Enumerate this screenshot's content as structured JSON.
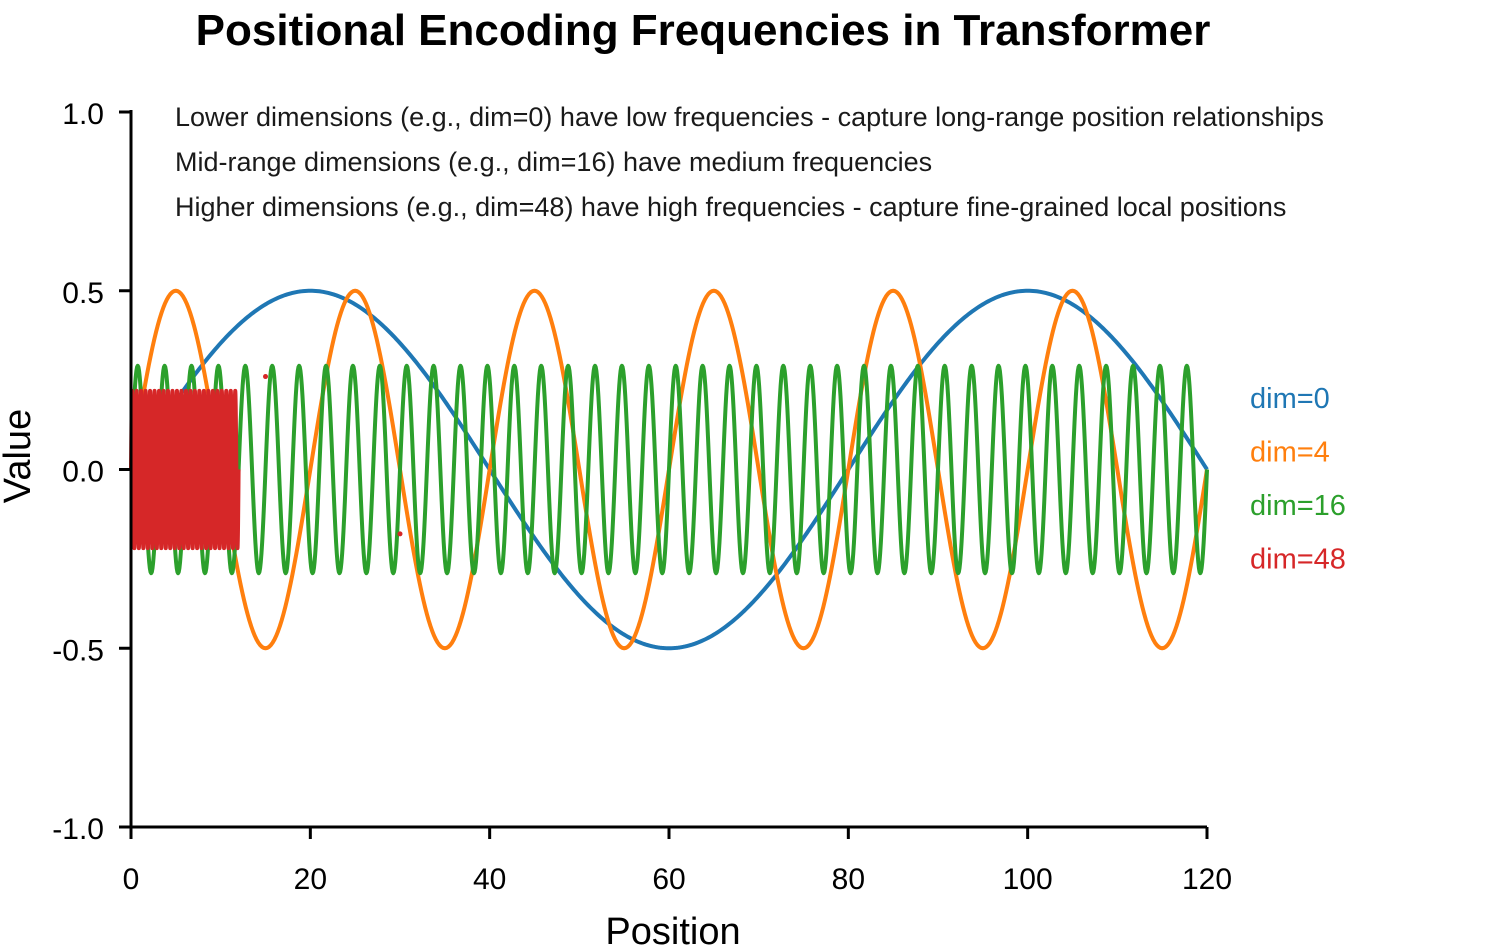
{
  "chart_data": {
    "type": "line",
    "title": "Positional Encoding Frequencies in Transformer",
    "xlabel": "Position",
    "ylabel": "Value",
    "xlim": [
      0,
      120
    ],
    "ylim": [
      -1.0,
      1.0
    ],
    "xticks": [
      0,
      20,
      40,
      60,
      80,
      100,
      120
    ],
    "xtick_labels": [
      "0",
      "20",
      "40",
      "60",
      "80",
      "100",
      "120"
    ],
    "yticks": [
      -1.0,
      -0.5,
      0.0,
      0.5,
      1.0
    ],
    "ytick_labels": [
      "-1.0",
      "-0.5",
      "0.0",
      "0.5",
      "1.0"
    ],
    "grid": false,
    "legend_position": "right",
    "annotations": [
      "Lower dimensions (e.g., dim=0) have low frequencies - capture long-range position relationships",
      "Mid-range dimensions (e.g., dim=16) have medium frequencies",
      "Higher dimensions (e.g., dim=48) have high frequencies - capture fine-grained local positions"
    ],
    "series": [
      {
        "name": "dim=0",
        "color": "#1f77b4",
        "function": "sine",
        "amplitude": 0.5,
        "period": 80,
        "x_range": [
          0,
          120
        ]
      },
      {
        "name": "dim=4",
        "color": "#ff7f0e",
        "function": "sine",
        "amplitude": 0.5,
        "period": 20,
        "x_range": [
          0,
          120
        ]
      },
      {
        "name": "dim=16",
        "color": "#2ca02c",
        "function": "sine",
        "amplitude": 0.29,
        "period": 3,
        "x_range": [
          0,
          120
        ]
      },
      {
        "name": "dim=48",
        "color": "#d62728",
        "function": "sine",
        "amplitude": 0.22,
        "period": 0.5,
        "x_range": [
          0,
          12
        ],
        "outliers": [
          {
            "x": 15,
            "y": 0.26
          },
          {
            "x": 30,
            "y": -0.18
          }
        ]
      }
    ]
  }
}
